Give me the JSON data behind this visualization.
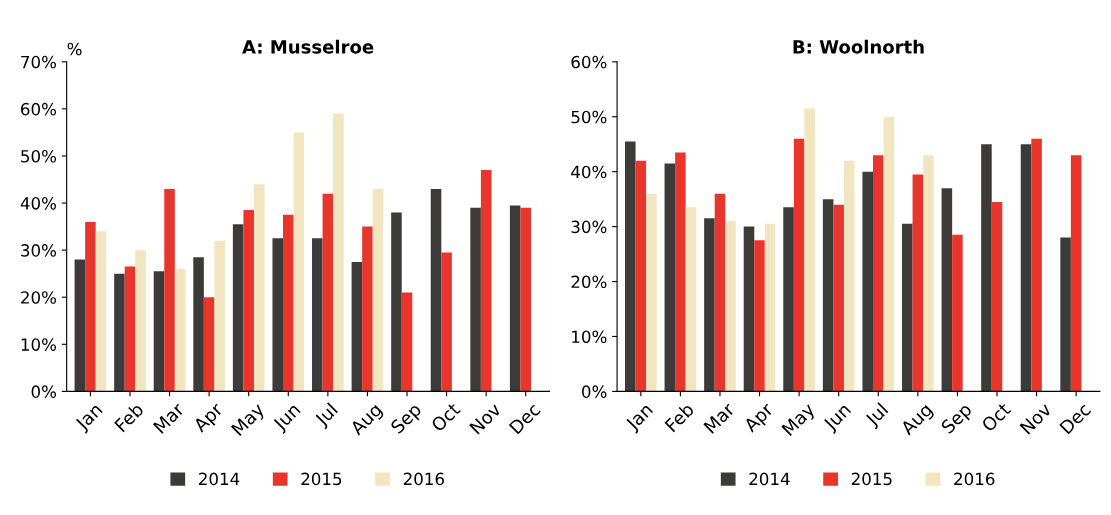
{
  "chart_data": [
    {
      "type": "bar",
      "title": "A: Musselroe",
      "ylabel": "%",
      "categories": [
        "Jan",
        "Feb",
        "Mar",
        "Apr",
        "May",
        "Jun",
        "Jul",
        "Aug",
        "Sep",
        "Oct",
        "Nov",
        "Dec"
      ],
      "series": [
        {
          "name": "2014",
          "color": "#3d3a3a",
          "values": [
            28,
            25,
            25.5,
            28.5,
            35.5,
            32.5,
            32.5,
            27.5,
            38,
            43,
            39,
            39.5
          ]
        },
        {
          "name": "2015",
          "color": "#e8362c",
          "values": [
            36,
            26.5,
            43,
            20,
            38.5,
            37.5,
            42,
            35,
            21,
            29.5,
            47,
            39
          ]
        },
        {
          "name": "2016",
          "color": "#f1e6c0",
          "values": [
            34,
            30,
            26,
            32,
            44,
            55,
            59,
            43,
            null,
            null,
            null,
            null
          ]
        }
      ],
      "ylim": [
        0,
        70
      ],
      "yticks": [
        {
          "value": 0,
          "label": "0%"
        },
        {
          "value": 10,
          "label": "10%"
        },
        {
          "value": 20,
          "label": "20%"
        },
        {
          "value": 30,
          "label": "30%"
        },
        {
          "value": 40,
          "label": "40%"
        },
        {
          "value": 50,
          "label": "50%"
        },
        {
          "value": 60,
          "label": "60%"
        },
        {
          "value": 70,
          "label": "70%"
        }
      ],
      "grid": false,
      "legend": "bottom"
    },
    {
      "type": "bar",
      "title": "B: Woolnorth",
      "categories": [
        "Jan",
        "Feb",
        "Mar",
        "Apr",
        "May",
        "Jun",
        "Jul",
        "Aug",
        "Sep",
        "Oct",
        "Nov",
        "Dec"
      ],
      "series": [
        {
          "name": "2014",
          "color": "#3d3a3a",
          "values": [
            45.5,
            41.5,
            31.5,
            30,
            33.5,
            35,
            40,
            30.5,
            37,
            45,
            45,
            28
          ]
        },
        {
          "name": "2015",
          "color": "#e8362c",
          "values": [
            42,
            43.5,
            36,
            27.5,
            46,
            34,
            43,
            39.5,
            28.5,
            34.5,
            46,
            43
          ]
        },
        {
          "name": "2016",
          "color": "#f1e6c0",
          "values": [
            36,
            33.5,
            31,
            30.5,
            51.5,
            42,
            50,
            43,
            null,
            null,
            null,
            null
          ]
        }
      ],
      "ylim": [
        0,
        60
      ],
      "yticks": [
        {
          "value": 0,
          "label": "0%"
        },
        {
          "value": 10,
          "label": "10%"
        },
        {
          "value": 20,
          "label": "20%"
        },
        {
          "value": 30,
          "label": "30%"
        },
        {
          "value": 40,
          "label": "40%"
        },
        {
          "value": 50,
          "label": "50%"
        },
        {
          "value": 60,
          "label": "60%"
        }
      ],
      "grid": false,
      "legend": "bottom"
    }
  ]
}
